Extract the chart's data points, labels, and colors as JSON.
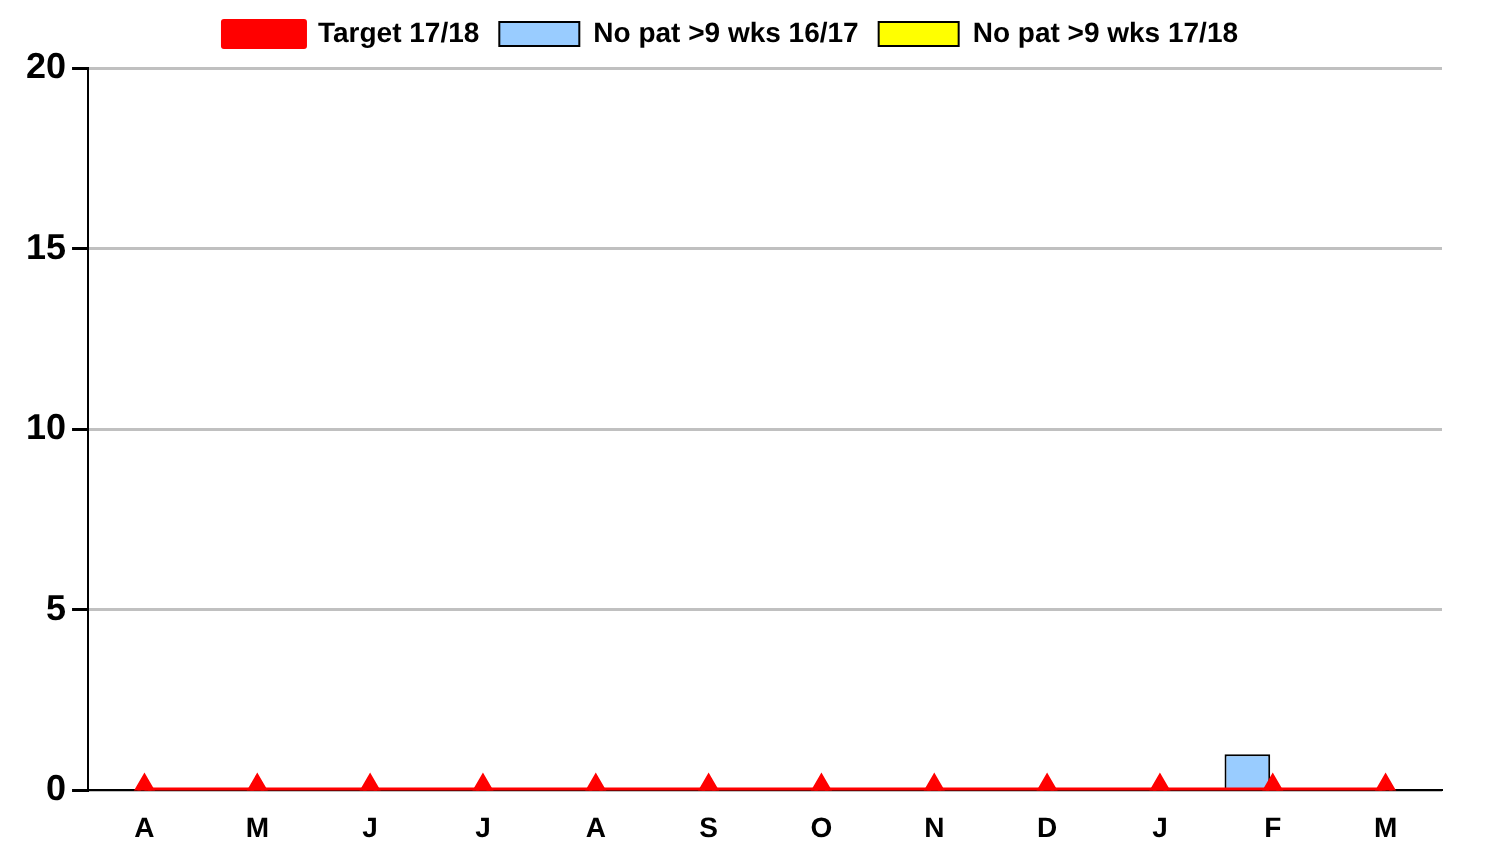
{
  "chart_data": {
    "type": "bar",
    "categories": [
      "A",
      "M",
      "J",
      "J",
      "A",
      "S",
      "O",
      "N",
      "D",
      "J",
      "F",
      "M"
    ],
    "series": [
      {
        "name": "No pat >9 wks 16/17",
        "color": "#99ccff",
        "values": [
          0,
          0,
          0,
          0,
          0,
          0,
          0,
          0,
          0,
          0,
          1,
          0
        ]
      },
      {
        "name": "No pat >9 wks 17/18",
        "color": "#ffff00",
        "values": [
          0,
          0,
          0,
          0,
          0,
          0,
          0,
          0,
          0,
          0,
          0,
          0
        ]
      },
      {
        "name": "Target 17/18",
        "type": "line",
        "color": "#ff0000",
        "marker": "triangle",
        "values": [
          0,
          0,
          0,
          0,
          0,
          0,
          0,
          0,
          0,
          0,
          0,
          0
        ]
      }
    ],
    "ylim": [
      0,
      20
    ],
    "yticks": [
      0,
      5,
      10,
      15,
      20
    ],
    "grid": "y",
    "legend": "top"
  }
}
